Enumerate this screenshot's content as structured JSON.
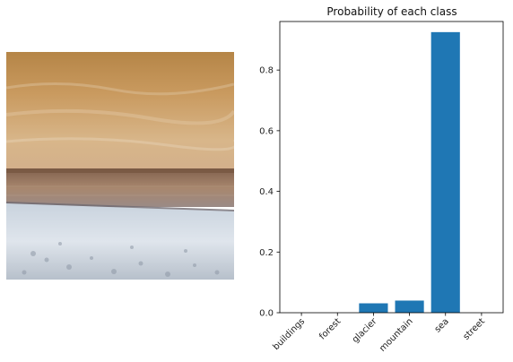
{
  "chart_data": {
    "type": "bar",
    "title": "Probability of each class",
    "categories": [
      "buildings",
      "forest",
      "glacier",
      "mountain",
      "sea",
      "street"
    ],
    "values": [
      0.0,
      0.0,
      0.031,
      0.04,
      0.925,
      0.0
    ],
    "ylim": [
      0,
      0.96
    ],
    "yticks": [
      "0.0",
      "0.2",
      "0.4",
      "0.6",
      "0.8"
    ],
    "ytick_values": [
      0.0,
      0.2,
      0.4,
      0.6,
      0.8
    ],
    "xlabel": "",
    "ylabel": "",
    "grid": false,
    "bar_color": "#1f77b4",
    "xtick_rotation_deg": 45
  },
  "image_panel": {
    "depicts": "beach-scene-icon"
  }
}
